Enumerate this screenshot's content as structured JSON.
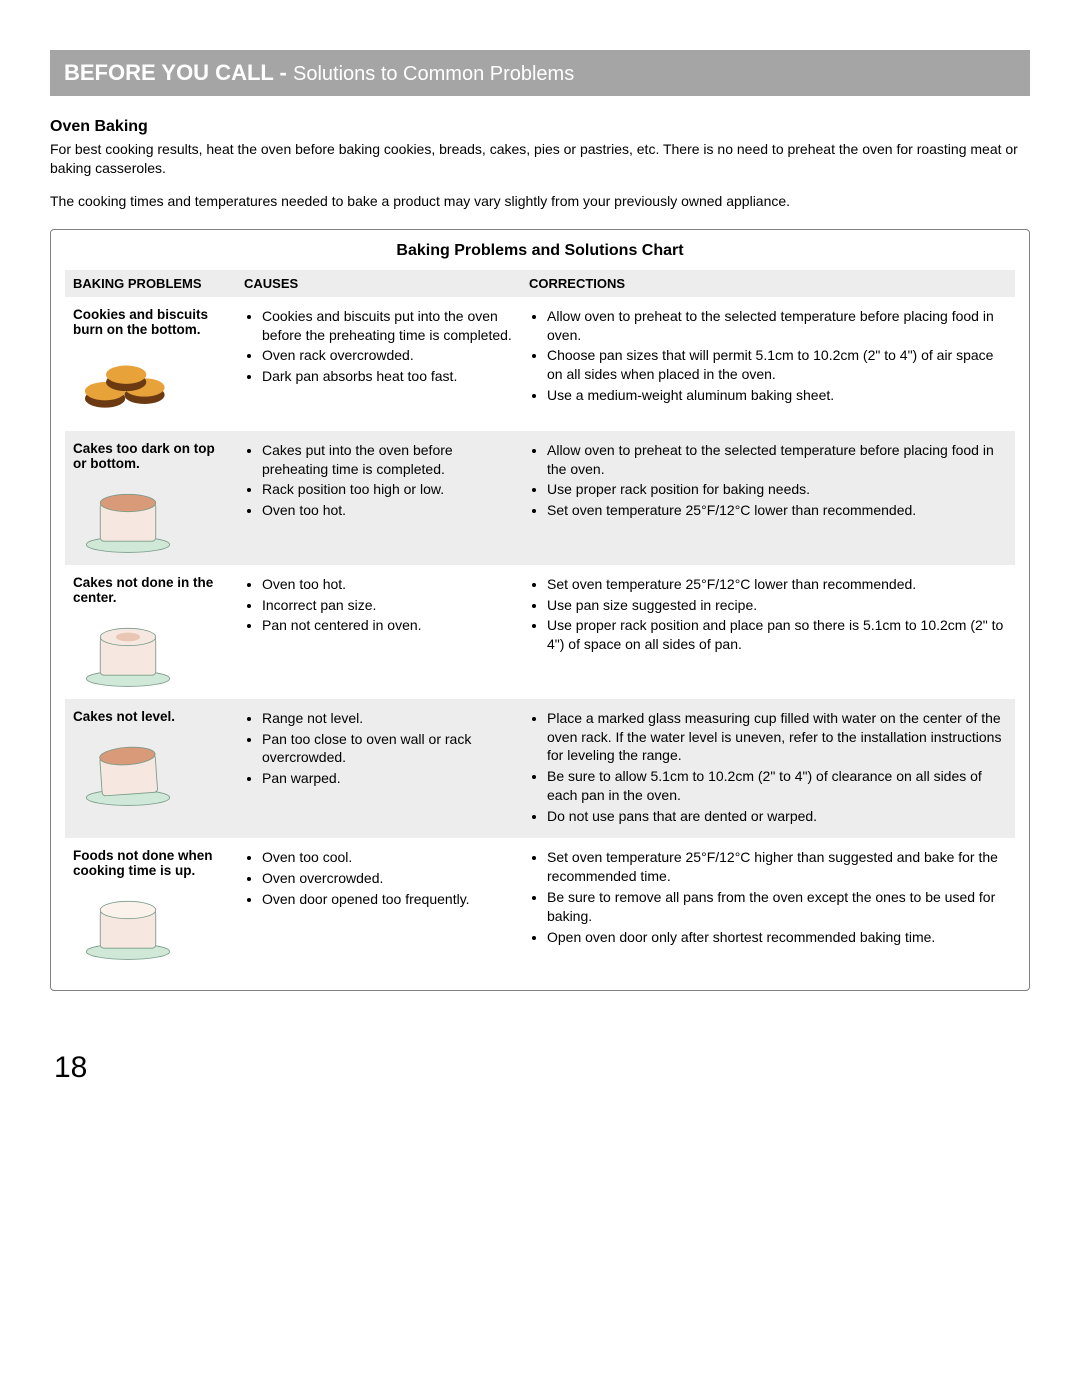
{
  "header": {
    "strong": "BEFORE YOU CALL - ",
    "rest": "Solutions to Common Problems"
  },
  "section_title": "Oven Baking",
  "intro_p1": "For best cooking results, heat the oven before baking cookies, breads, cakes, pies or pastries, etc. There is no need to preheat the oven for roasting meat or baking casseroles.",
  "intro_p2": "The cooking times and temperatures needed to bake a product may vary slightly from your previously owned appliance.",
  "chart_title": "Baking Problems and Solutions Chart",
  "columns": {
    "c1": "BAKING PROBLEMS",
    "c2": "CAUSES",
    "c3": "CORRECTIONS"
  },
  "rows": [
    {
      "problem": "Cookies and biscuits burn on the bottom.",
      "icon": "cookies",
      "causes": [
        "Cookies and biscuits put into the oven before the preheating time is completed.",
        "Oven rack overcrowded.",
        "Dark pan absorbs heat too fast."
      ],
      "corrections": [
        "Allow oven to preheat to the selected temperature before placing food in oven.",
        "Choose pan sizes that will permit 5.1cm to 10.2cm (2\" to 4\") of air space on all sides when placed in the oven.",
        "Use a medium-weight aluminum baking sheet."
      ]
    },
    {
      "problem": "Cakes too dark on top or bottom.",
      "icon": "cake-dark",
      "causes": [
        "Cakes put into the oven before preheating time is completed.",
        "Rack position too high or low.",
        "Oven too hot."
      ],
      "corrections": [
        "Allow oven to preheat to the selected temperature before placing food in the oven.",
        "Use proper rack position for baking needs.",
        "Set oven temperature 25°F/12°C lower than recommended."
      ]
    },
    {
      "problem": "Cakes not done in the center.",
      "icon": "cake-center",
      "causes": [
        "Oven too hot.",
        "Incorrect pan size.",
        "Pan not centered in oven."
      ],
      "corrections": [
        "Set oven temperature 25°F/12°C lower than recommended.",
        "Use pan size suggested in recipe.",
        "Use proper rack position and place pan so there is 5.1cm to 10.2cm (2\" to 4\") of space on all sides of pan."
      ]
    },
    {
      "problem": "Cakes not level.",
      "icon": "cake-uneven",
      "causes": [
        "Range not level.",
        "Pan too close to oven wall or rack overcrowded.",
        "Pan warped."
      ],
      "corrections": [
        "Place a marked glass measuring cup filled with water on the center of the oven rack. If the water level is uneven, refer to the installation instructions for leveling the range.",
        "Be sure to allow 5.1cm to 10.2cm (2\" to 4\") of clearance on all sides of each pan in the oven.",
        "Do not use pans that are dented or warped."
      ]
    },
    {
      "problem": "Foods not done when cooking time is up.",
      "icon": "cake-pale",
      "causes": [
        "Oven too cool.",
        "Oven overcrowded.",
        "Oven door opened too frequently."
      ],
      "corrections": [
        "Set oven temperature 25°F/12°C higher than suggested and bake for the recommended time.",
        "Be sure to remove all pans from the oven except the ones to be used for baking.",
        "Open oven door only after shortest recommended baking time."
      ]
    }
  ],
  "page_number": "18",
  "colors": {
    "header_bg": "#a5a5a5",
    "header_text": "#ffffff",
    "row_alt_bg": "#ededed",
    "border": "#808080",
    "cookie_top": "#e8a23a",
    "cookie_side": "#6b3a12",
    "cake_plate": "#cfe8d8",
    "cake_body": "#f6e8e0",
    "cake_dark": "#d99a7a",
    "cake_outline": "#7a9a88"
  }
}
